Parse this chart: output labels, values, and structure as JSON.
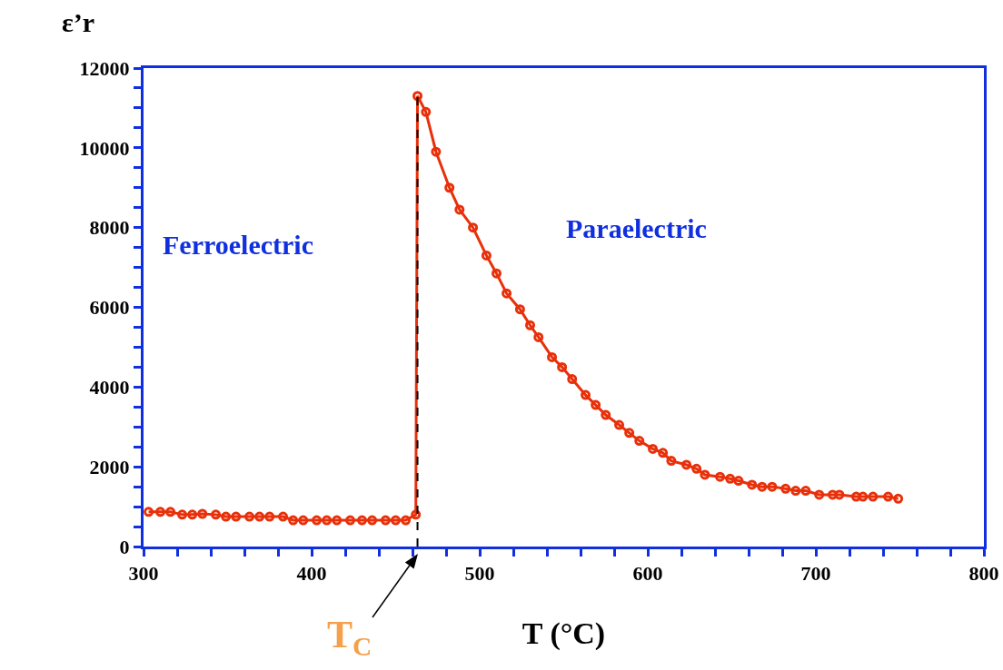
{
  "chart_data": {
    "type": "line",
    "xlabel": "T (°C)",
    "ylabel": "ε’r",
    "x": [
      303,
      310,
      316,
      323,
      329,
      335,
      343,
      349,
      355,
      363,
      369,
      375,
      383,
      389,
      395,
      403,
      409,
      415,
      423,
      430,
      436,
      444,
      450,
      456,
      462,
      463,
      468,
      474,
      482,
      488,
      496,
      504,
      510,
      516,
      524,
      530,
      535,
      543,
      549,
      555,
      563,
      569,
      575,
      583,
      589,
      595,
      603,
      609,
      614,
      623,
      629,
      634,
      643,
      649,
      654,
      662,
      668,
      674,
      682,
      688,
      694,
      702,
      710,
      714,
      724,
      728,
      734,
      743,
      749
    ],
    "series": [
      {
        "color": "#e8300a",
        "values": [
          870,
          870,
          870,
          800,
          800,
          820,
          800,
          750,
          750,
          750,
          750,
          750,
          750,
          660,
          660,
          660,
          660,
          660,
          660,
          660,
          660,
          660,
          660,
          660,
          800,
          11300,
          10900,
          9900,
          9000,
          8450,
          8000,
          7300,
          6850,
          6350,
          5950,
          5550,
          5250,
          4750,
          4500,
          4200,
          3800,
          3550,
          3300,
          3050,
          2850,
          2650,
          2450,
          2350,
          2150,
          2050,
          1950,
          1800,
          1750,
          1700,
          1650,
          1550,
          1500,
          1500,
          1450,
          1400,
          1400,
          1300,
          1300,
          1300,
          1250,
          1250,
          1250,
          1250,
          1200
        ]
      }
    ],
    "marker": "circle",
    "line_style": "solid",
    "xlim": [
      300,
      800
    ],
    "xticks": [
      300,
      {
        "value": 320,
        "label": null
      },
      {
        "value": 340,
        "label": null
      },
      {
        "value": 360,
        "label": null
      },
      {
        "value": 380,
        "label": null
      },
      400,
      {
        "value": 420,
        "label": null
      },
      {
        "value": 440,
        "label": null
      },
      {
        "value": 460,
        "label": null
      },
      {
        "value": 480,
        "label": null
      },
      500,
      {
        "value": 520,
        "label": null
      },
      {
        "value": 540,
        "label": null
      },
      {
        "value": 560,
        "label": null
      },
      {
        "value": 580,
        "label": null
      },
      600,
      {
        "value": 620,
        "label": null
      },
      {
        "value": 640,
        "label": null
      },
      {
        "value": 660,
        "label": null
      },
      {
        "value": 680,
        "label": null
      },
      700,
      {
        "value": 720,
        "label": null
      },
      {
        "value": 740,
        "label": null
      },
      {
        "value": 760,
        "label": null
      },
      {
        "value": 780,
        "label": null
      },
      800
    ],
    "ylim": [
      0,
      12000
    ],
    "yticks": [
      0,
      {
        "value": 500,
        "label": null
      },
      {
        "value": 1000,
        "label": null
      },
      {
        "value": 1500,
        "label": null
      },
      2000,
      {
        "value": 2500,
        "label": null
      },
      {
        "value": 3000,
        "label": null
      },
      {
        "value": 3500,
        "label": null
      },
      4000,
      {
        "value": 4500,
        "label": null
      },
      {
        "value": 5000,
        "label": null
      },
      {
        "value": 5500,
        "label": null
      },
      6000,
      {
        "value": 6500,
        "label": null
      },
      {
        "value": 7000,
        "label": null
      },
      {
        "value": 7500,
        "label": null
      },
      8000,
      {
        "value": 8500,
        "label": null
      },
      {
        "value": 9000,
        "label": null
      },
      {
        "value": 9500,
        "label": null
      },
      10000,
      {
        "value": 10500,
        "label": null
      },
      {
        "value": 11000,
        "label": null
      },
      {
        "value": 11500,
        "label": null
      },
      12000
    ],
    "grid": false,
    "ref_lines": [
      {
        "axis": "x",
        "value": 463,
        "label": null,
        "color": "#000000",
        "line_style": "dashed"
      }
    ],
    "annotations": [
      "Ferroelectric",
      "Paraelectric",
      {
        "text": "T$_{C}$",
        "x": 463,
        "y": 0
      }
    ]
  }
}
